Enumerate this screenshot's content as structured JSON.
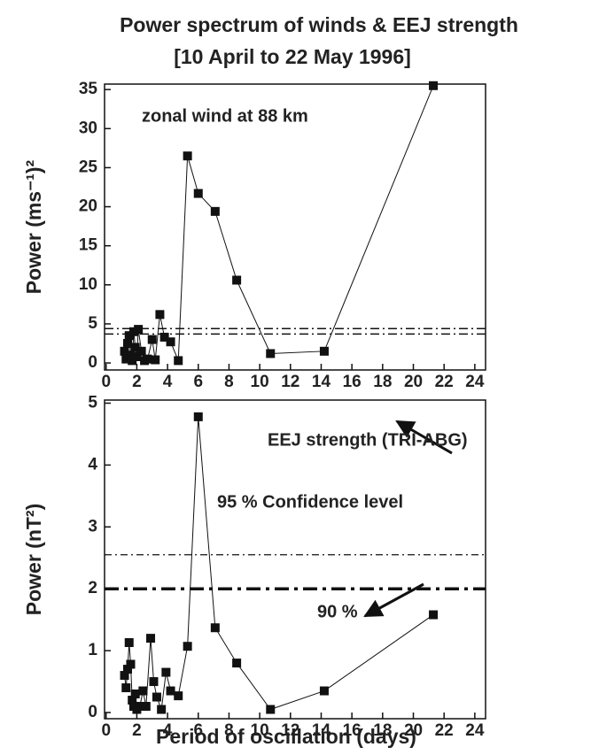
{
  "chart_data": [
    {
      "type": "scatter",
      "title": "Power spectrum of winds & EEJ strength",
      "subtitle": "[10 April to 22 May 1996]",
      "ylabel": "Power (ms⁻¹)²",
      "annotations": [
        "zonal wind at 88 km"
      ],
      "x": [
        1.2,
        1.3,
        1.4,
        1.5,
        1.6,
        1.7,
        1.8,
        1.9,
        2.0,
        2.1,
        2.3,
        2.5,
        2.7,
        3.0,
        3.2,
        3.5,
        3.8,
        4.2,
        4.7,
        5.3,
        6.0,
        7.1,
        8.5,
        10.7,
        14.2,
        21.3
      ],
      "values": [
        1.5,
        0.5,
        2.5,
        3.5,
        1,
        0.3,
        4,
        2,
        0.8,
        4.3,
        1.5,
        0.3,
        0.5,
        3,
        0.4,
        6.2,
        3.3,
        2.7,
        0.3,
        26.5,
        21.7,
        19.4,
        10.6,
        1.2,
        1.5,
        35.5
      ],
      "color": "#111111",
      "reference_lines": [
        4.4,
        3.7
      ],
      "xlim": [
        -0.1,
        24.7
      ],
      "xticks": [
        0,
        2,
        4,
        6,
        8,
        10,
        12,
        14,
        16,
        18,
        20,
        22,
        24
      ],
      "ylim": [
        -0.9,
        35.7
      ],
      "yticks": [
        0,
        5,
        10,
        15,
        20,
        25,
        30,
        35
      ]
    },
    {
      "type": "scatter",
      "ylabel": "Power (nT²)",
      "xlabel": "Period of oscillation (days)",
      "annotations": [
        "EEJ strength (TRI-ABG)",
        "95 % Confidence level",
        "90 %"
      ],
      "x": [
        1.2,
        1.3,
        1.4,
        1.5,
        1.6,
        1.7,
        1.8,
        1.9,
        2.0,
        2.2,
        2.4,
        2.6,
        2.9,
        3.1,
        3.3,
        3.6,
        3.9,
        4.2,
        4.7,
        5.3,
        6.0,
        7.1,
        8.5,
        10.7,
        14.2,
        21.3
      ],
      "values": [
        0.6,
        0.4,
        0.7,
        1.13,
        0.78,
        0.2,
        0.1,
        0.3,
        0.05,
        0.1,
        0.35,
        0.1,
        1.2,
        0.5,
        0.25,
        0.05,
        0.65,
        0.35,
        0.27,
        1.07,
        4.78,
        1.37,
        0.8,
        0.05,
        0.35,
        1.58
      ],
      "color": "#111111",
      "reference_lines": [
        2.55,
        2.0
      ],
      "xlim": [
        -0.1,
        24.7
      ],
      "xticks": [
        0,
        2,
        4,
        6,
        8,
        10,
        12,
        14,
        16,
        18,
        20,
        22,
        24
      ],
      "ylim": [
        -0.1,
        5.05
      ],
      "yticks": [
        0,
        1,
        2,
        3,
        4,
        5
      ]
    }
  ]
}
